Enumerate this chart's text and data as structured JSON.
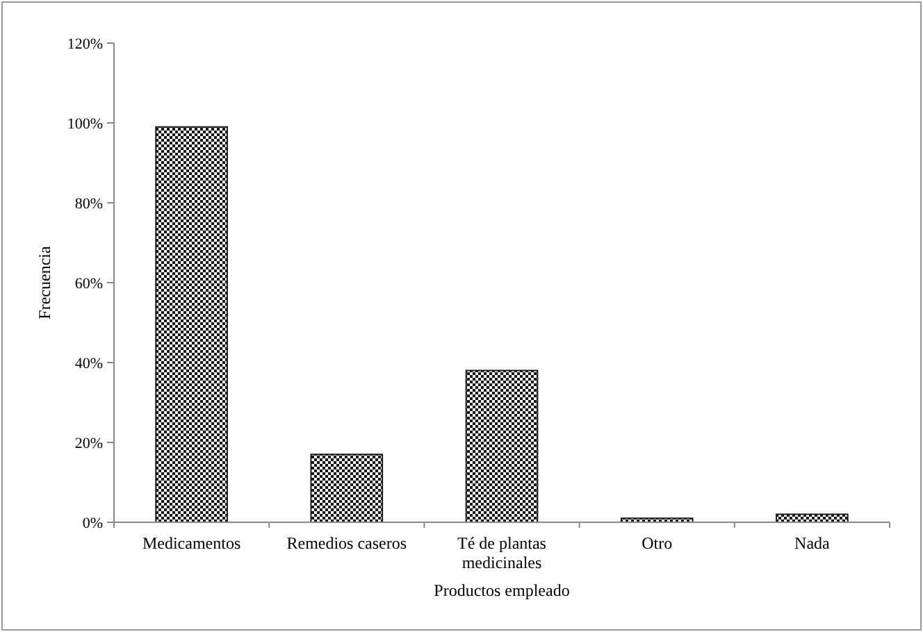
{
  "chart_data": {
    "type": "bar",
    "xlabel": "Productos empleado",
    "ylabel": "Frecuencia",
    "categories": [
      "Medicamentos",
      "Remedios caseros",
      "Té de plantas medicinales",
      "Otro",
      "Nada"
    ],
    "values": [
      99,
      17,
      38,
      1,
      2
    ],
    "color": "#1a1a1a",
    "ylim": [
      0,
      120
    ],
    "yticks": [
      {
        "value": 0,
        "label": "0%"
      },
      {
        "value": 20,
        "label": "20%"
      },
      {
        "value": 40,
        "label": "40%"
      },
      {
        "value": 60,
        "label": "60%"
      },
      {
        "value": 80,
        "label": "80%"
      },
      {
        "value": 100,
        "label": "100%"
      },
      {
        "value": 120,
        "label": "120%"
      }
    ],
    "grid": false
  }
}
